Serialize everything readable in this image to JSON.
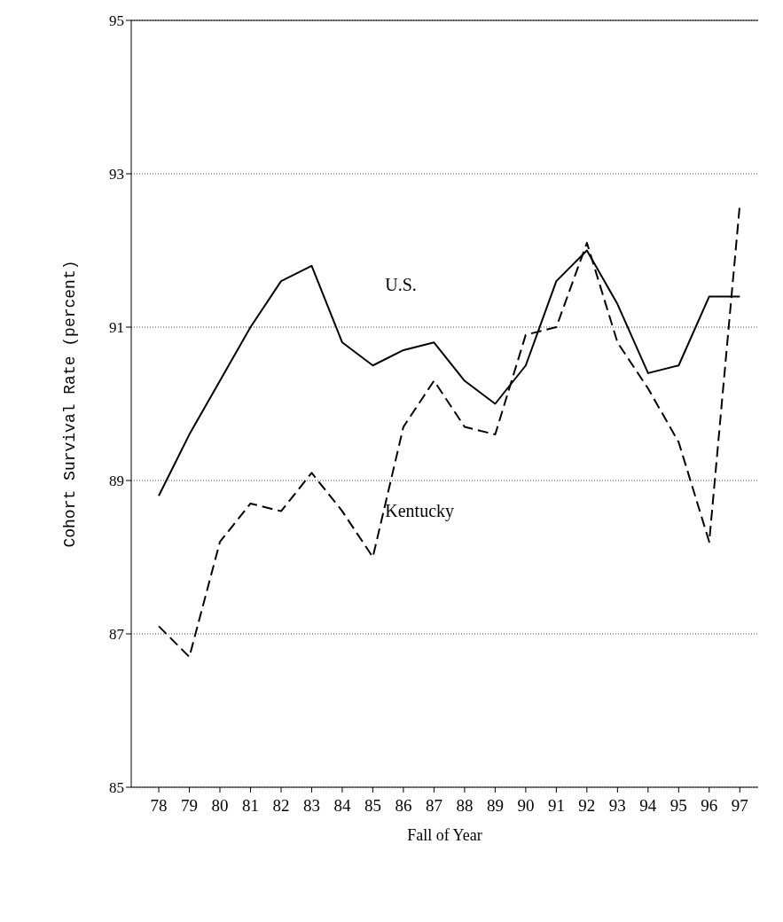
{
  "chart_data": {
    "type": "line",
    "xlabel": "Fall of Year",
    "ylabel": "Cohort Survival Rate (percent)",
    "categories": [
      "78",
      "79",
      "80",
      "81",
      "82",
      "83",
      "84",
      "85",
      "86",
      "87",
      "88",
      "89",
      "90",
      "91",
      "92",
      "93",
      "94",
      "95",
      "96",
      "97"
    ],
    "series": [
      {
        "name": "U.S.",
        "color": "#000000",
        "line_style": "solid",
        "values": [
          88.8,
          89.6,
          90.3,
          91.0,
          91.6,
          91.8,
          90.8,
          90.5,
          90.7,
          90.8,
          90.3,
          90.0,
          90.5,
          91.6,
          92.0,
          91.3,
          90.4,
          90.5,
          91.4,
          91.4
        ]
      },
      {
        "name": "Kentucky",
        "color": "#000000",
        "line_style": "dashed",
        "values": [
          87.1,
          86.7,
          88.2,
          88.7,
          88.6,
          89.1,
          88.6,
          88.0,
          89.7,
          90.3,
          89.7,
          89.6,
          90.9,
          91.0,
          92.1,
          90.8,
          90.2,
          89.5,
          88.2,
          92.6
        ]
      }
    ],
    "ylim": [
      85,
      95
    ],
    "yticks": [
      85,
      87,
      89,
      91,
      93,
      95
    ],
    "grid": "y",
    "marker": "none"
  }
}
